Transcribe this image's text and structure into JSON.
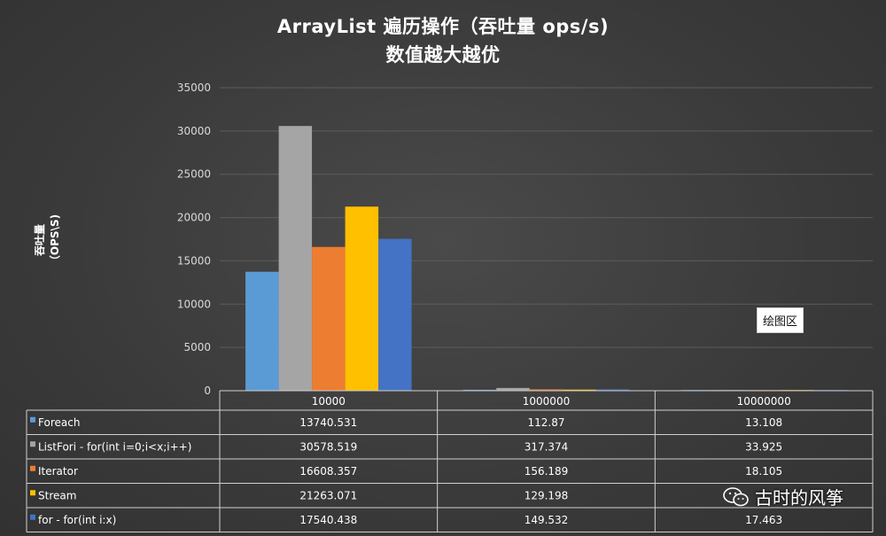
{
  "chart_data": {
    "type": "bar",
    "title_line1": "ArrayList 遍历操作（吞吐量 ops/s)",
    "title_line2": "数值越大越优",
    "ylabel": "吞吐量（OPS\\S)",
    "ylim": [
      0,
      35000
    ],
    "yticks": [
      0,
      5000,
      10000,
      15000,
      20000,
      25000,
      30000,
      35000
    ],
    "categories": [
      "10000",
      "1000000",
      "10000000"
    ],
    "series": [
      {
        "name": "Foreach",
        "color": "#5b9bd5",
        "values": [
          13740.531,
          112.87,
          13.108
        ],
        "labels": [
          "13740.531",
          "112.87",
          "13.108"
        ]
      },
      {
        "name": "ListFori - for(int i=0;i<x;i++)",
        "color": "#a5a5a5",
        "values": [
          30578.519,
          317.374,
          33.925
        ],
        "labels": [
          "30578.519",
          "317.374",
          "33.925"
        ]
      },
      {
        "name": "Iterator",
        "color": "#ed7d31",
        "values": [
          16608.357,
          156.189,
          18.105
        ],
        "labels": [
          "16608.357",
          "156.189",
          "18.105"
        ]
      },
      {
        "name": "Stream",
        "color": "#ffc000",
        "values": [
          21263.071,
          129.198,
          0
        ],
        "labels": [
          "21263.071",
          "129.198",
          ""
        ]
      },
      {
        "name": "for - for(int i:x)",
        "color": "#4472c4",
        "values": [
          17540.438,
          149.532,
          17.463
        ],
        "labels": [
          "17540.438",
          "149.532",
          "17.463"
        ]
      }
    ],
    "grid": true,
    "legend": "table-bottom"
  },
  "plot_area_label": "绘图区",
  "watermark": "古时的风筝"
}
